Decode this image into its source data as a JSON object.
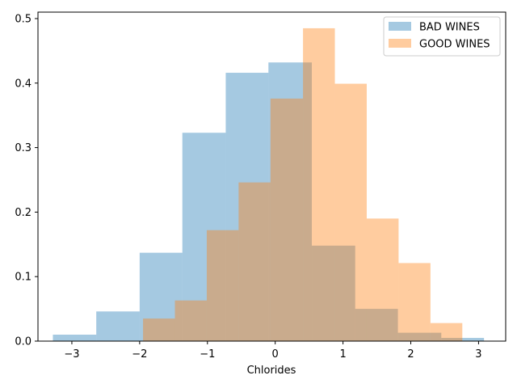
{
  "chart_data": {
    "type": "histogram",
    "title": "",
    "xlabel": "Chlorides",
    "ylabel": "",
    "xlim": [
      -3.5,
      3.4
    ],
    "ylim": [
      0,
      0.51
    ],
    "xticks": [
      -3,
      -2,
      -1,
      0,
      1,
      2,
      3
    ],
    "xtick_labels": [
      "−3",
      "−2",
      "−1",
      "0",
      "1",
      "2",
      "3"
    ],
    "yticks": [
      0.0,
      0.1,
      0.2,
      0.3,
      0.4,
      0.5
    ],
    "ytick_labels": [
      "0.0",
      "0.1",
      "0.2",
      "0.3",
      "0.4",
      "0.5"
    ],
    "grid": false,
    "legend_position": "top-right",
    "series": [
      {
        "name": "BAD WINES",
        "color": "#1f77b4",
        "alpha": 0.4,
        "bin_edges": [
          -3.28,
          -2.64,
          -2.0,
          -1.37,
          -0.73,
          -0.1,
          0.54,
          1.18,
          1.81,
          2.45,
          3.08
        ],
        "values": [
          0.01,
          0.046,
          0.137,
          0.323,
          0.416,
          0.432,
          0.148,
          0.05,
          0.013,
          0.005
        ]
      },
      {
        "name": "GOOD WINES",
        "color": "#ff7f0e",
        "alpha": 0.4,
        "bin_edges": [
          -1.95,
          -1.48,
          -1.01,
          -0.54,
          -0.07,
          0.41,
          0.88,
          1.35,
          1.82,
          2.29,
          2.76
        ],
        "values": [
          0.035,
          0.063,
          0.172,
          0.246,
          0.376,
          0.485,
          0.399,
          0.19,
          0.121,
          0.028
        ]
      }
    ]
  }
}
